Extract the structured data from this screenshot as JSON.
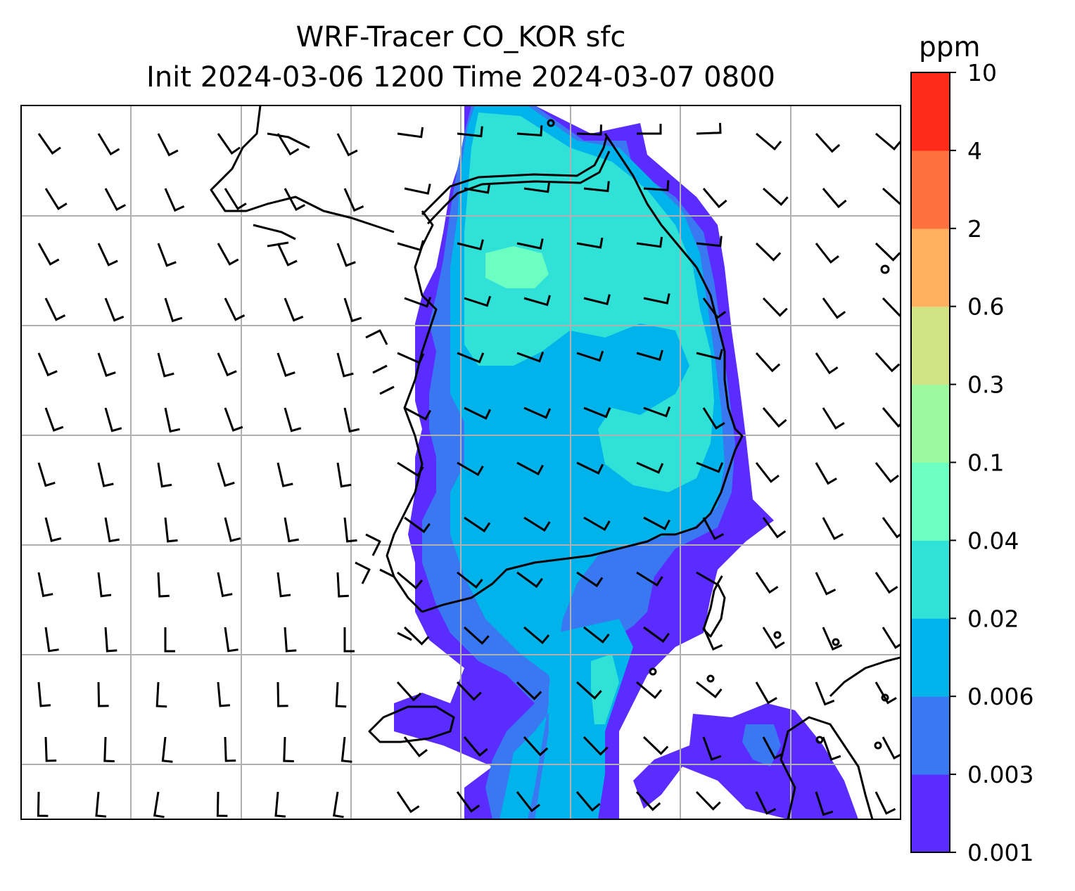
{
  "title": {
    "line1": "WRF-Tracer CO_KOR sfc",
    "line2": "Init 2024-03-06 1200 Time 2024-03-07 0800"
  },
  "colorbar": {
    "unit": "ppm",
    "levels": [
      "0.001",
      "0.003",
      "0.006",
      "0.02",
      "0.04",
      "0.1",
      "0.3",
      "0.6",
      "2",
      "4",
      "10"
    ],
    "colors": [
      "#5b2cff",
      "#3a78f2",
      "#00b3ea",
      "#2fe1d7",
      "#6cffc2",
      "#9cf99e",
      "#d1e285",
      "#ffb060",
      "#ff7040",
      "#ff2a1a"
    ]
  },
  "map": {
    "gridlines": true,
    "fields": [
      "CO tracer concentration (filled contours)",
      "wind barbs",
      "coastlines"
    ]
  }
}
